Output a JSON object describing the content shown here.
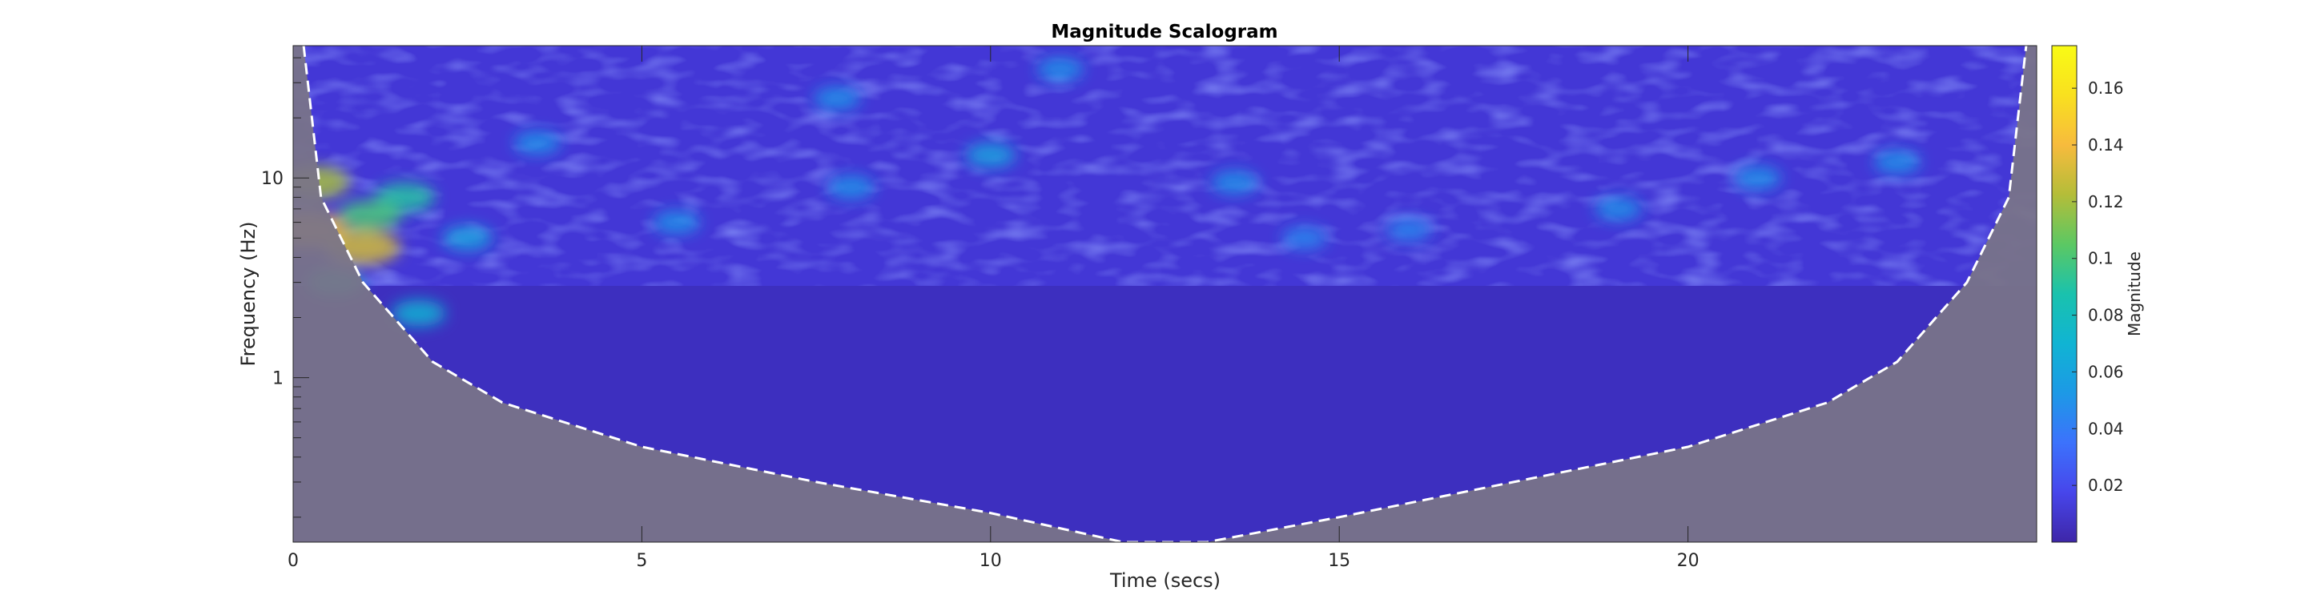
{
  "chart_data": {
    "type": "heatmap",
    "title": "Magnitude Scalogram",
    "xlabel": "Time (secs)",
    "ylabel": "Frequency (Hz)",
    "xlim": [
      0,
      25
    ],
    "ylim": [
      0.15,
      46
    ],
    "yscale": "log",
    "x_ticks": [
      0,
      5,
      10,
      15,
      20
    ],
    "x_tick_labels": [
      "0",
      "5",
      "10",
      "15",
      "20"
    ],
    "y_ticks": [
      1,
      10
    ],
    "y_tick_labels": [
      "1",
      "10"
    ],
    "colorbar": {
      "label": "Magnitude",
      "range": [
        0,
        0.175
      ],
      "ticks": [
        0.02,
        0.04,
        0.06,
        0.08,
        0.1,
        0.12,
        0.14,
        0.16
      ],
      "tick_labels": [
        "0.02",
        "0.04",
        "0.06",
        "0.08",
        "0.1",
        "0.12",
        "0.14",
        "0.16"
      ],
      "colormap": "parula",
      "colors": [
        "#3e26a8",
        "#4746eb",
        "#3c72fc",
        "#1d99e6",
        "#10b4d3",
        "#1ac2ad",
        "#5cc863",
        "#b4bd39",
        "#f7bb3d",
        "#f9e01f",
        "#f9fb15"
      ]
    },
    "cone_of_influence": {
      "style": "dashed",
      "color": "#ffffff",
      "shading": "#808080",
      "frequency_at_time": [
        {
          "x": 0.15,
          "y": 46
        },
        {
          "x": 0.4,
          "y": 8
        },
        {
          "x": 1.0,
          "y": 3.0
        },
        {
          "x": 2.0,
          "y": 1.2
        },
        {
          "x": 3.0,
          "y": 0.75
        },
        {
          "x": 5.0,
          "y": 0.45
        },
        {
          "x": 7.5,
          "y": 0.3
        },
        {
          "x": 10.0,
          "y": 0.21
        },
        {
          "x": 11.9,
          "y": 0.15
        },
        {
          "x": 13.1,
          "y": 0.15
        },
        {
          "x": 15.0,
          "y": 0.2
        },
        {
          "x": 17.5,
          "y": 0.3
        },
        {
          "x": 20.0,
          "y": 0.45
        },
        {
          "x": 22.0,
          "y": 0.75
        },
        {
          "x": 23.0,
          "y": 1.2
        },
        {
          "x": 24.0,
          "y": 3.0
        },
        {
          "x": 24.6,
          "y": 8
        },
        {
          "x": 24.85,
          "y": 46
        }
      ]
    },
    "hotspots": [
      {
        "x": 0.3,
        "y": 9.5,
        "value": 0.12
      },
      {
        "x": 0.2,
        "y": 5.5,
        "value": 0.14
      },
      {
        "x": 1.0,
        "y": 4.5,
        "value": 0.13
      },
      {
        "x": 1.6,
        "y": 8.0,
        "value": 0.09
      },
      {
        "x": 0.6,
        "y": 3.0,
        "value": 0.08
      },
      {
        "x": 1.8,
        "y": 2.1,
        "value": 0.07
      },
      {
        "x": 1.1,
        "y": 6.5,
        "value": 0.1
      },
      {
        "x": 2.5,
        "y": 5.0,
        "value": 0.06
      },
      {
        "x": 10.0,
        "y": 13.0,
        "value": 0.06
      },
      {
        "x": 7.8,
        "y": 25.0,
        "value": 0.05
      },
      {
        "x": 5.5,
        "y": 6.0,
        "value": 0.05
      },
      {
        "x": 8.0,
        "y": 9.0,
        "value": 0.05
      },
      {
        "x": 3.5,
        "y": 15.0,
        "value": 0.05
      },
      {
        "x": 13.5,
        "y": 9.5,
        "value": 0.05
      },
      {
        "x": 19.0,
        "y": 7.0,
        "value": 0.05
      },
      {
        "x": 23.0,
        "y": 12.0,
        "value": 0.05
      },
      {
        "x": 16.0,
        "y": 5.5,
        "value": 0.045
      },
      {
        "x": 21.0,
        "y": 10.0,
        "value": 0.05
      },
      {
        "x": 11.0,
        "y": 35.0,
        "value": 0.05
      },
      {
        "x": 14.5,
        "y": 5.0,
        "value": 0.045
      }
    ]
  }
}
